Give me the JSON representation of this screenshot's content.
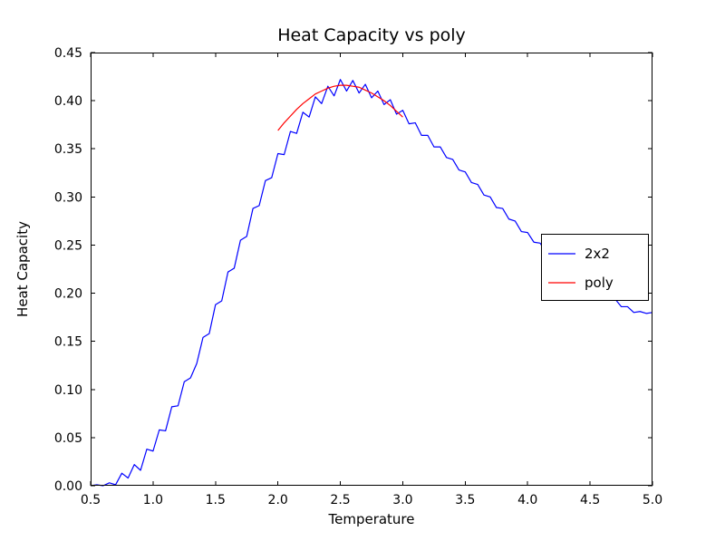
{
  "figure": {
    "title": "Heat Capacity vs poly",
    "xlabel": "Temperature",
    "ylabel": "Heat Capacity"
  },
  "legend": {
    "entries": [
      {
        "label": "2x2",
        "color": "#0000ff"
      },
      {
        "label": "poly",
        "color": "#ff0000"
      }
    ]
  },
  "chart_data": {
    "type": "line",
    "title": "Heat Capacity vs poly",
    "xlabel": "Temperature",
    "ylabel": "Heat Capacity",
    "xlim": [
      0.5,
      5.0
    ],
    "ylim": [
      0.0,
      0.45
    ],
    "xticks": [
      "0.5",
      "1.0",
      "1.5",
      "2.0",
      "2.5",
      "3.0",
      "3.5",
      "4.0",
      "4.5",
      "5.0"
    ],
    "yticks": [
      "0.00",
      "0.05",
      "0.10",
      "0.15",
      "0.20",
      "0.25",
      "0.30",
      "0.35",
      "0.40",
      "0.45"
    ],
    "grid": false,
    "legend_position": "center right",
    "series": [
      {
        "name": "2x2",
        "color": "#0000ff",
        "x": [
          0.5,
          0.55,
          0.6,
          0.65,
          0.7,
          0.75,
          0.8,
          0.85,
          0.9,
          0.95,
          1.0,
          1.05,
          1.1,
          1.15,
          1.2,
          1.25,
          1.3,
          1.35,
          1.4,
          1.45,
          1.5,
          1.55,
          1.6,
          1.65,
          1.7,
          1.75,
          1.8,
          1.85,
          1.9,
          1.95,
          2.0,
          2.05,
          2.1,
          2.15,
          2.2,
          2.25,
          2.3,
          2.35,
          2.4,
          2.45,
          2.5,
          2.55,
          2.6,
          2.65,
          2.7,
          2.75,
          2.8,
          2.85,
          2.9,
          2.95,
          3.0,
          3.05,
          3.1,
          3.15,
          3.2,
          3.25,
          3.3,
          3.35,
          3.4,
          3.45,
          3.5,
          3.55,
          3.6,
          3.65,
          3.7,
          3.75,
          3.8,
          3.85,
          3.9,
          3.95,
          4.0,
          4.05,
          4.1,
          4.15,
          4.2,
          4.25,
          4.3,
          4.35,
          4.4,
          4.45,
          4.5,
          4.55,
          4.6,
          4.65,
          4.7,
          4.75,
          4.8,
          4.85,
          4.9,
          4.95,
          5.0
        ],
        "y": [
          0.0,
          0.001,
          0.0,
          0.003,
          0.001,
          0.013,
          0.008,
          0.022,
          0.016,
          0.038,
          0.036,
          0.058,
          0.057,
          0.082,
          0.083,
          0.108,
          0.112,
          0.127,
          0.154,
          0.158,
          0.188,
          0.192,
          0.222,
          0.226,
          0.255,
          0.259,
          0.288,
          0.291,
          0.317,
          0.32,
          0.345,
          0.344,
          0.368,
          0.366,
          0.388,
          0.383,
          0.404,
          0.397,
          0.415,
          0.405,
          0.422,
          0.41,
          0.421,
          0.408,
          0.417,
          0.403,
          0.41,
          0.396,
          0.401,
          0.386,
          0.39,
          0.376,
          0.377,
          0.364,
          0.364,
          0.352,
          0.352,
          0.341,
          0.339,
          0.328,
          0.326,
          0.315,
          0.313,
          0.302,
          0.3,
          0.289,
          0.288,
          0.277,
          0.275,
          0.264,
          0.263,
          0.253,
          0.252,
          0.242,
          0.241,
          0.231,
          0.23,
          0.221,
          0.22,
          0.211,
          0.211,
          0.202,
          0.202,
          0.194,
          0.194,
          0.186,
          0.186,
          0.18,
          0.181,
          0.179,
          0.18
        ]
      },
      {
        "name": "poly",
        "color": "#ff0000",
        "x": [
          2.0,
          2.05,
          2.1,
          2.15,
          2.2,
          2.25,
          2.3,
          2.35,
          2.4,
          2.45,
          2.5,
          2.55,
          2.6,
          2.65,
          2.7,
          2.75,
          2.8,
          2.85,
          2.9,
          2.95,
          3.0
        ],
        "y": [
          0.369,
          0.377,
          0.384,
          0.391,
          0.397,
          0.402,
          0.407,
          0.41,
          0.413,
          0.415,
          0.416,
          0.416,
          0.415,
          0.414,
          0.411,
          0.408,
          0.404,
          0.4,
          0.395,
          0.389,
          0.383
        ]
      }
    ]
  }
}
